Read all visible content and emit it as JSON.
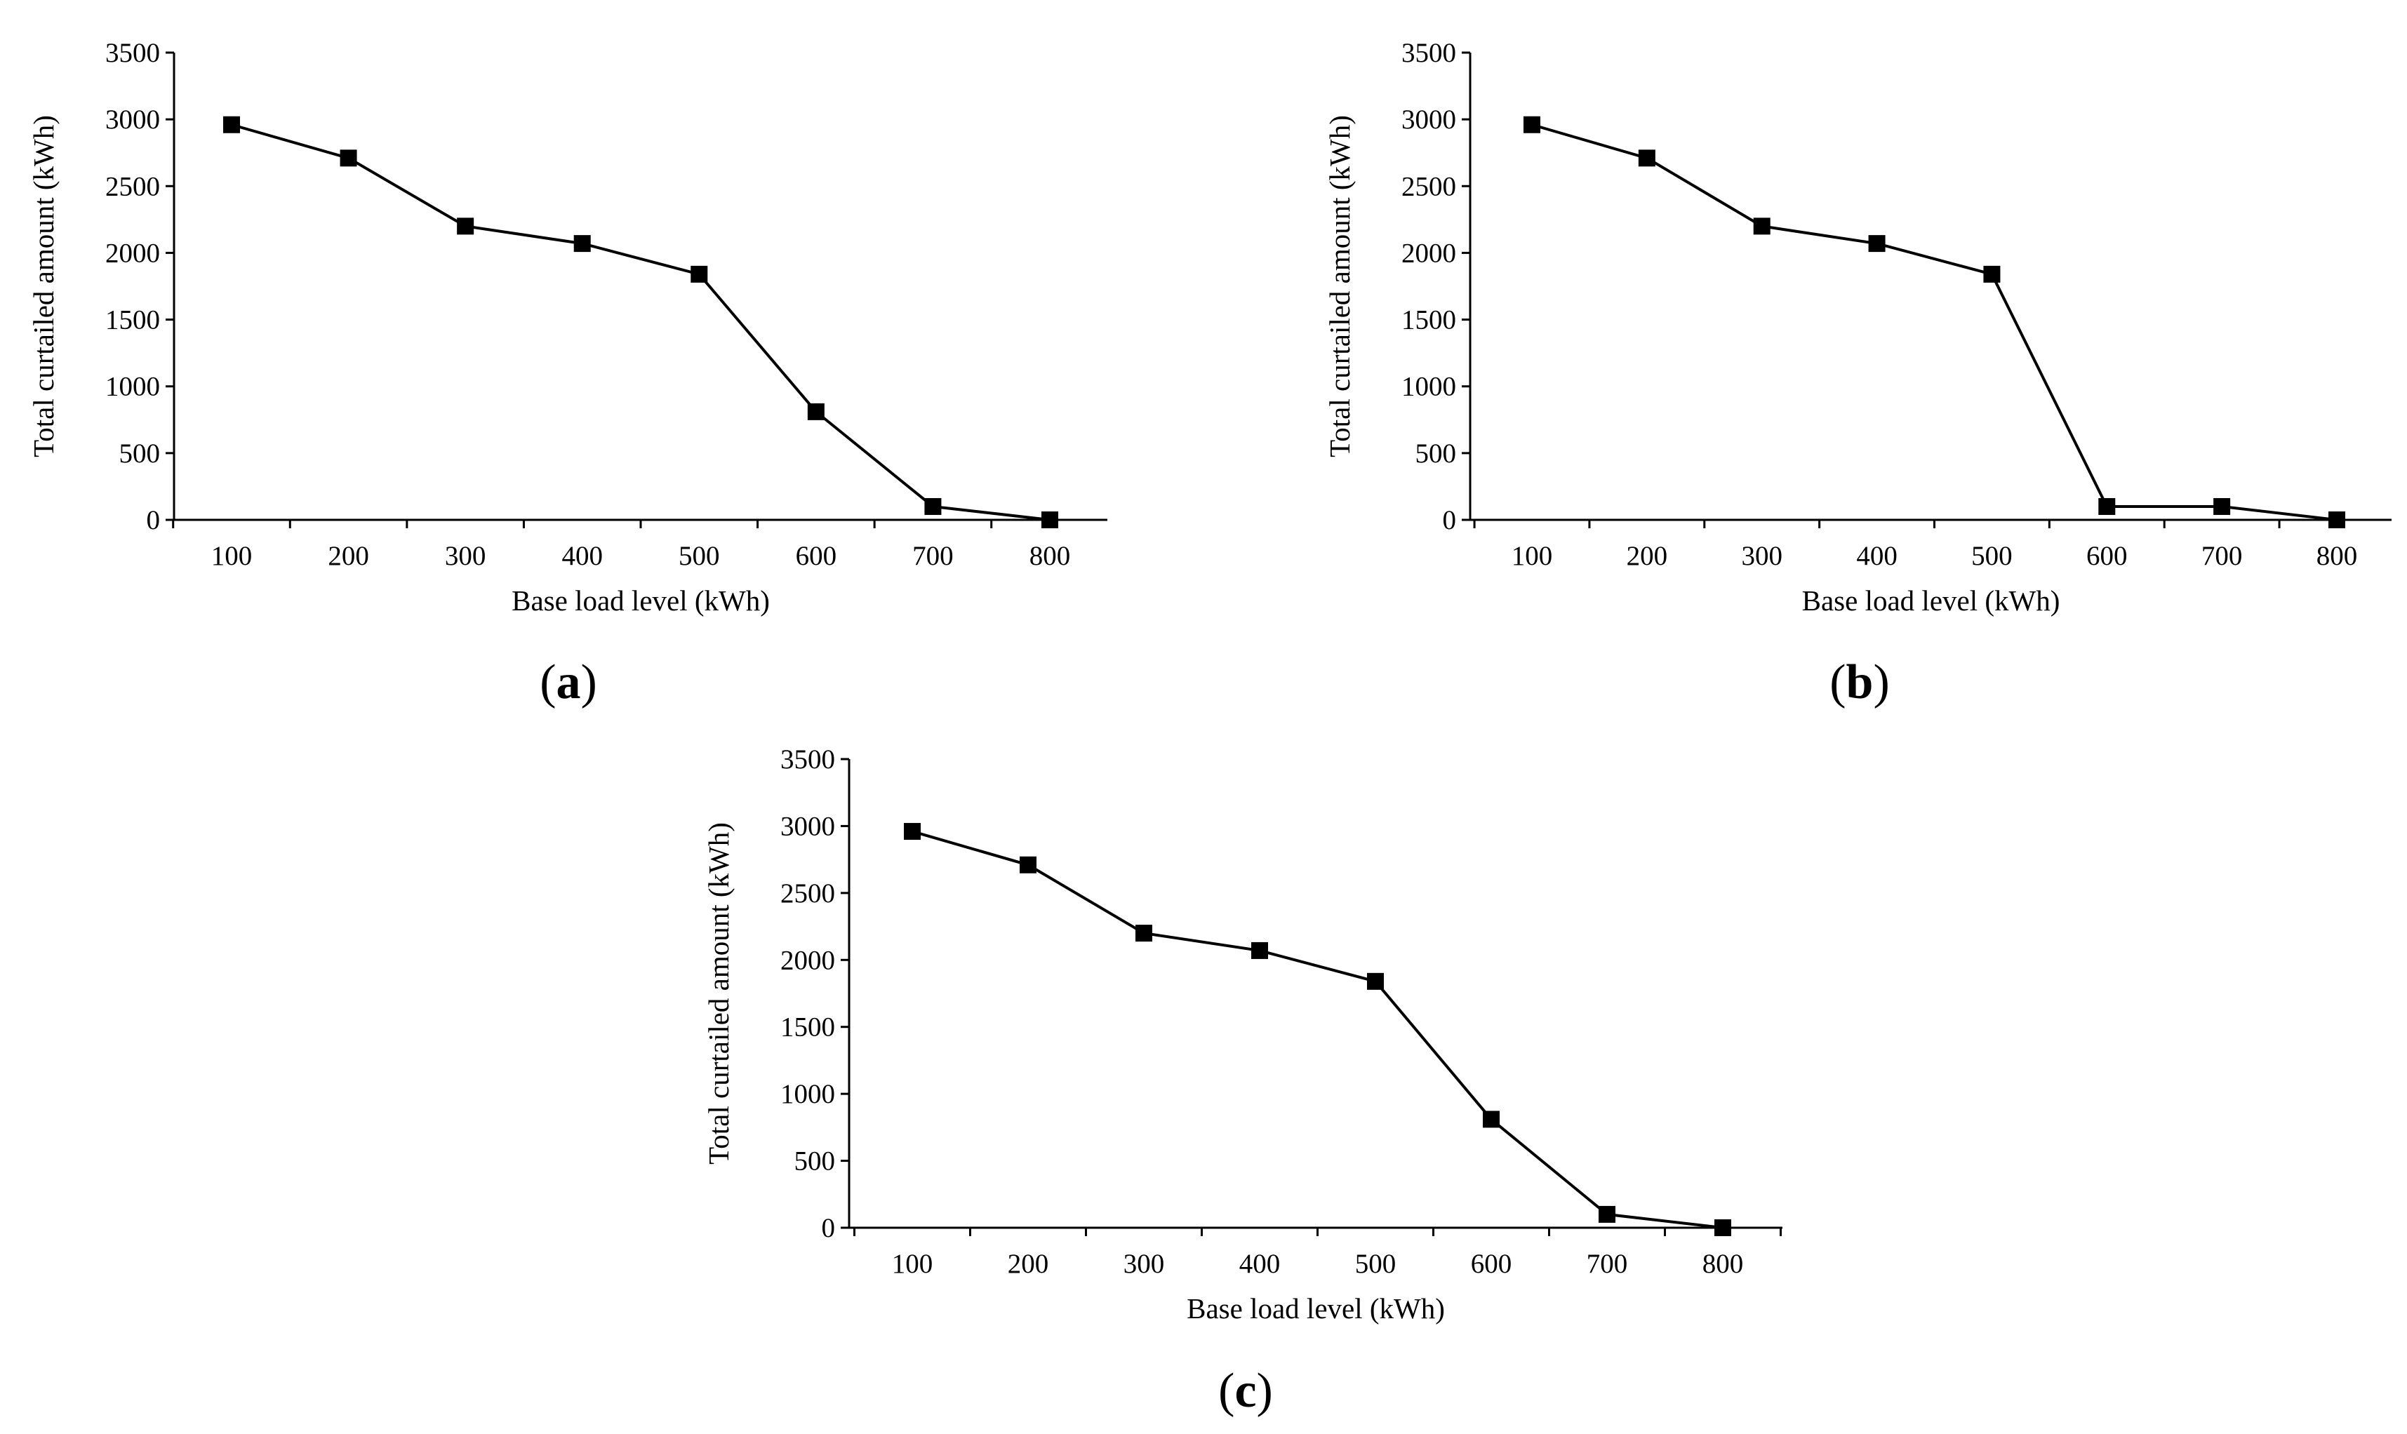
{
  "colors": {
    "line": "#000000",
    "marker": "#000000",
    "background": "#ffffff"
  },
  "chart_data": [
    {
      "panel_label": "a",
      "type": "line",
      "xlabel": "Base load level (kWh)",
      "ylabel": "Total curtailed amount (kWh)",
      "x": [
        100,
        200,
        300,
        400,
        500,
        600,
        700,
        800
      ],
      "y": [
        2960,
        2710,
        2200,
        2070,
        1840,
        810,
        100,
        0
      ],
      "ylim": [
        0,
        3500
      ],
      "yticks": [
        0,
        500,
        1000,
        1500,
        2000,
        2500,
        3000,
        3500
      ],
      "marker": "square",
      "grid": false,
      "legend": "none"
    },
    {
      "panel_label": "b",
      "type": "line",
      "xlabel": "Base load level (kWh)",
      "ylabel": "Total curtailed amount (kWh)",
      "x": [
        100,
        200,
        300,
        400,
        500,
        600,
        700,
        800
      ],
      "y": [
        2960,
        2710,
        2200,
        2070,
        1840,
        100,
        100,
        0
      ],
      "ylim": [
        0,
        3500
      ],
      "yticks": [
        0,
        500,
        1000,
        1500,
        2000,
        2500,
        3000,
        3500
      ],
      "marker": "square",
      "grid": false,
      "legend": "none"
    },
    {
      "panel_label": "c",
      "type": "line",
      "xlabel": "Base load level (kWh)",
      "ylabel": "Total curtailed amount (kWh)",
      "x": [
        100,
        200,
        300,
        400,
        500,
        600,
        700,
        800
      ],
      "y": [
        2960,
        2710,
        2200,
        2070,
        1840,
        810,
        100,
        0
      ],
      "ylim": [
        0,
        3500
      ],
      "yticks": [
        0,
        500,
        1000,
        1500,
        2000,
        2500,
        3000,
        3500
      ],
      "marker": "square",
      "grid": false,
      "legend": "none"
    }
  ]
}
